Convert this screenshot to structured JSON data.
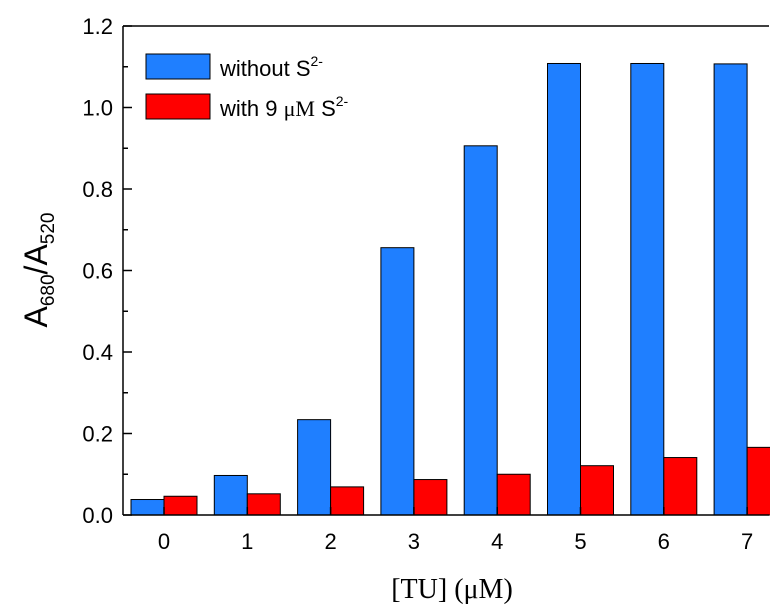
{
  "chart_data": {
    "type": "bar",
    "categories": [
      "0",
      "1",
      "2",
      "3",
      "4",
      "5",
      "6",
      "7"
    ],
    "series": [
      {
        "name": "without S2-",
        "color": "#1f7fff",
        "values": [
          0.038,
          0.097,
          0.234,
          0.656,
          0.906,
          1.108,
          1.108,
          1.107
        ]
      },
      {
        "name": "with 9 μM S2-",
        "color": "#ff0000",
        "values": [
          0.046,
          0.052,
          0.069,
          0.087,
          0.1,
          0.121,
          0.141,
          0.166
        ]
      }
    ],
    "legend": {
      "placement": "top-left",
      "items": [
        {
          "text": "without S",
          "sup": "2-"
        },
        {
          "text_pre": "with 9 ",
          "mu": "μM",
          "text_post": " S",
          "sup": "2-"
        }
      ]
    },
    "xlabel": {
      "pre": "[TU] (",
      "mu": "μM",
      "post": ")"
    },
    "ylabel": {
      "a1": "A",
      "sub1": "680",
      "slash": "/A",
      "sub2": "520"
    },
    "ylim": [
      0,
      1.2
    ],
    "yticks": [
      "0.0",
      "0.2",
      "0.4",
      "0.6",
      "0.8",
      "1.0",
      "1.2"
    ],
    "grid": false
  }
}
